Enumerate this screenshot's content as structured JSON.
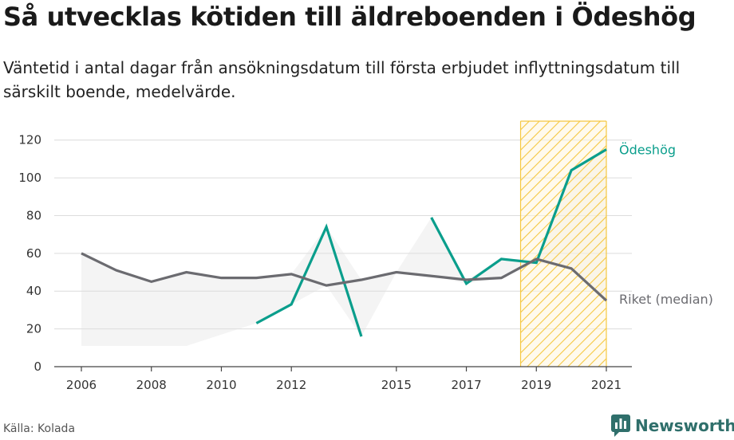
{
  "header": {
    "title": "Så utvecklas kötiden till äldreboenden i Ödeshög",
    "subtitle": "Väntetid i antal dagar från ansökningsdatum till första erbjudet inflyttningsdatum till särskilt boende, medelvärde."
  },
  "footer": {
    "source": "Källa: Kolada",
    "brand": "Newsworthy",
    "brand_color": "#2f6f6b",
    "brand_icon": "bar-chart-speech-bubble-icon"
  },
  "chart_data": {
    "type": "line",
    "x_ticks": [
      2006,
      2008,
      2010,
      2012,
      2015,
      2017,
      2019,
      2021
    ],
    "xlim": [
      2006,
      2021
    ],
    "ylim": [
      0,
      130
    ],
    "y_ticks": [
      0,
      20,
      40,
      60,
      80,
      100,
      120
    ],
    "grid": true,
    "highlight_range": [
      2018.55,
      2021
    ],
    "highlight_color": "#f5c842",
    "series": [
      {
        "name": "Ödeshög",
        "color": "#0a9e8c",
        "points": [
          [
            2011,
            23
          ],
          [
            2012,
            33
          ],
          [
            2013,
            74
          ],
          [
            2014,
            16
          ],
          [
            2016,
            79
          ],
          [
            2017,
            44
          ],
          [
            2018,
            57
          ],
          [
            2019,
            55
          ],
          [
            2020,
            104
          ],
          [
            2021,
            115
          ]
        ]
      },
      {
        "name": "Riket (median)",
        "color": "#6b6b70",
        "points": [
          [
            2006,
            60
          ],
          [
            2007,
            51
          ],
          [
            2008,
            45
          ],
          [
            2009,
            50
          ],
          [
            2010,
            47
          ],
          [
            2011,
            47
          ],
          [
            2012,
            49
          ],
          [
            2013,
            43
          ],
          [
            2014,
            46
          ],
          [
            2015,
            50
          ],
          [
            2016,
            48
          ],
          [
            2017,
            46
          ],
          [
            2018,
            47
          ],
          [
            2019,
            57
          ],
          [
            2020,
            52
          ],
          [
            2021,
            35
          ]
        ]
      }
    ],
    "band": {
      "color": "#e0e0e0",
      "upper": [
        [
          2006,
          60
        ],
        [
          2007,
          51
        ],
        [
          2008,
          45
        ],
        [
          2009,
          50
        ],
        [
          2010,
          47
        ],
        [
          2011,
          47
        ],
        [
          2012,
          49
        ],
        [
          2013,
          74
        ],
        [
          2014,
          46
        ],
        [
          2015,
          50
        ],
        [
          2016,
          79
        ],
        [
          2017,
          46
        ],
        [
          2018,
          57
        ],
        [
          2019,
          57
        ],
        [
          2020,
          104
        ],
        [
          2021,
          115
        ]
      ],
      "lower": [
        [
          2006,
          11
        ],
        [
          2007,
          11
        ],
        [
          2008,
          11
        ],
        [
          2009,
          11
        ],
        [
          2010,
          17
        ],
        [
          2011,
          23
        ],
        [
          2012,
          33
        ],
        [
          2013,
          43
        ],
        [
          2014,
          16
        ],
        [
          2015,
          50
        ],
        [
          2016,
          48
        ],
        [
          2017,
          44
        ],
        [
          2018,
          47
        ],
        [
          2019,
          55
        ],
        [
          2020,
          52
        ],
        [
          2021,
          35
        ]
      ]
    }
  }
}
